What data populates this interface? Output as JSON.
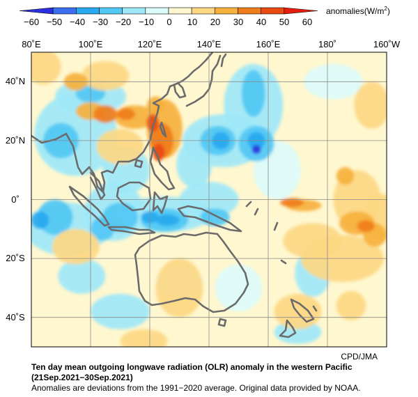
{
  "colorbar": {
    "unit_label": "anomalies(W/m",
    "unit_sup": "2",
    "unit_close": ")",
    "ticks": [
      "−60",
      "−50",
      "−40",
      "−30",
      "−20",
      "−10",
      "0",
      "10",
      "20",
      "30",
      "40",
      "50",
      "60"
    ],
    "colors": [
      "#2b2fe0",
      "#3c6ef0",
      "#28a9ef",
      "#52c8f4",
      "#9ee8f8",
      "#dcfbfb",
      "#fff7cf",
      "#fdd883",
      "#f6b13c",
      "#f07d1c",
      "#e84a12",
      "#e61c0c"
    ]
  },
  "map": {
    "lon_labels": [
      "80˚E",
      "100˚E",
      "120˚E",
      "140˚E",
      "160˚E",
      "180˚",
      "160˚W"
    ],
    "lat_labels": [
      "40˚N",
      "20˚N",
      "0˚",
      "20˚S",
      "40˚S"
    ],
    "lon_range": [
      80,
      200
    ],
    "lat_range": [
      -50,
      50
    ],
    "coastline_color": "#6b6b6b",
    "grid_color": "#8a8a8a"
  },
  "credit": "CPD/JMA",
  "caption": {
    "title": "Ten day mean outgoing longwave radiation (OLR) anomaly in the western Pacific",
    "period": "(21Sep.2021−30Sep.2021)",
    "note": "Anomalies are deviations from the 1991−2020 average. Original data provided by NOAA."
  }
}
